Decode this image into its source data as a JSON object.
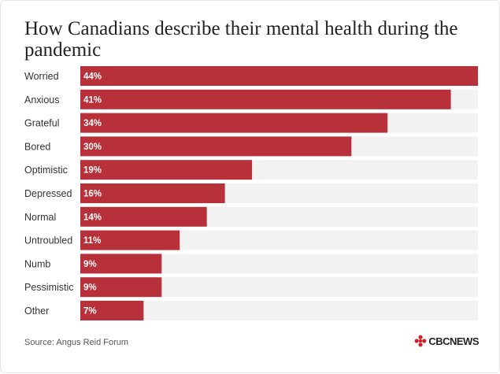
{
  "title": "How Canadians describe their mental health during the pandemic",
  "source": "Source: Angus Reid Forum",
  "logo_text": "CBCNEWS",
  "colors": {
    "bar": "#b8303a",
    "track": "#f2f2f2",
    "logo_red": "#d0202e"
  },
  "chart_data": {
    "type": "bar",
    "orientation": "horizontal",
    "categories": [
      "Worried",
      "Anxious",
      "Grateful",
      "Bored",
      "Optimistic",
      "Depressed",
      "Normal",
      "Untroubled",
      "Numb",
      "Pessimistic",
      "Other"
    ],
    "values": [
      44,
      41,
      34,
      30,
      19,
      16,
      14,
      11,
      9,
      9,
      7
    ],
    "value_labels": [
      "44%",
      "41%",
      "34%",
      "30%",
      "19%",
      "16%",
      "14%",
      "11%",
      "9%",
      "9%",
      "7%"
    ],
    "xlim": [
      0,
      44
    ],
    "unit": "%",
    "grid": false,
    "legend": "none"
  }
}
